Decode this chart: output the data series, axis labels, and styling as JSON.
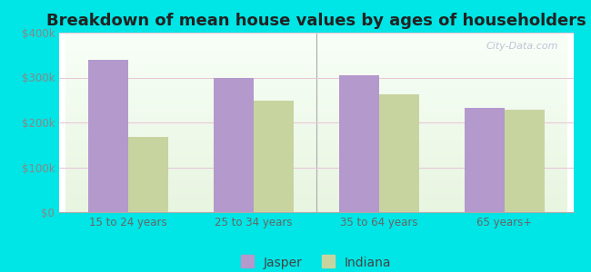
{
  "title": "Breakdown of mean house values by ages of householders",
  "categories": [
    "15 to 24 years",
    "25 to 34 years",
    "35 to 64 years",
    "65 years+"
  ],
  "jasper_values": [
    340000,
    300000,
    305000,
    232000
  ],
  "indiana_values": [
    168000,
    248000,
    262000,
    228000
  ],
  "jasper_color": "#b399cc",
  "indiana_color": "#c8d4a0",
  "background_color": "#00e5e5",
  "ylim": [
    0,
    400000
  ],
  "yticks": [
    0,
    100000,
    200000,
    300000,
    400000
  ],
  "ytick_labels": [
    "$0",
    "$100k",
    "$200k",
    "$300k",
    "$400k"
  ],
  "title_fontsize": 13,
  "legend_labels": [
    "Jasper",
    "Indiana"
  ],
  "bar_width": 0.32,
  "watermark": "City-Data.com",
  "grid_color": "#e8c8d8",
  "plot_bg_bottom": "#e8f5e0",
  "plot_bg_top": "#f8fff8"
}
